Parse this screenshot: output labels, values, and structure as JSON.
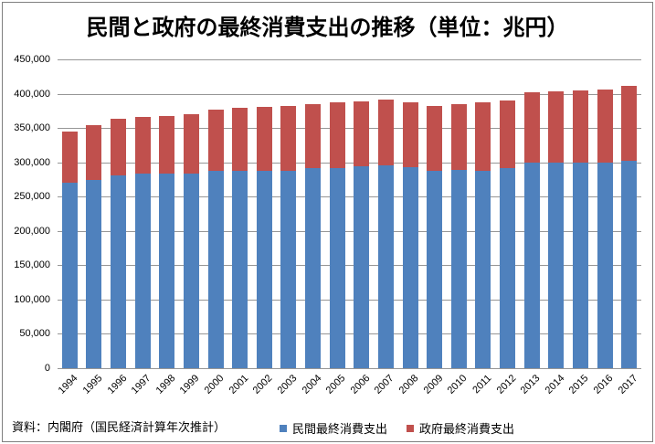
{
  "title": "民間と政府の最終消費支出の推移（単位：兆円）",
  "source_note": "資料：内閣府（国民経済計算年次推計）",
  "colors": {
    "private_series": "#4F81BD",
    "government_series": "#C0504D",
    "gridline": "#969696",
    "frame_border": "#808080",
    "background": "#FFFFFF",
    "text": "#000000"
  },
  "legend": {
    "position": "bottom",
    "items": [
      {
        "label": "民間最終消費支出",
        "color": "#4F81BD"
      },
      {
        "label": "政府最終消費支出",
        "color": "#C0504D"
      }
    ]
  },
  "chart_data": {
    "type": "bar",
    "stacked": true,
    "title": "民間と政府の最終消費支出の推移（単位：兆円）",
    "xlabel": "",
    "ylabel": "",
    "categories": [
      "1994",
      "1995",
      "1996",
      "1997",
      "1998",
      "1999",
      "2000",
      "2001",
      "2002",
      "2003",
      "2004",
      "2005",
      "2006",
      "2007",
      "2008",
      "2009",
      "2010",
      "2011",
      "2012",
      "2013",
      "2014",
      "2015",
      "2016",
      "2017"
    ],
    "series": [
      {
        "name": "民間最終消費支出",
        "color": "#4F81BD",
        "values": [
          270000,
          274000,
          281000,
          283000,
          283000,
          284000,
          287000,
          288000,
          288000,
          288000,
          291000,
          292000,
          294000,
          295000,
          293000,
          288000,
          289000,
          288000,
          291000,
          299000,
          299000,
          300000,
          299000,
          302000
        ]
      },
      {
        "name": "政府最終消費支出",
        "color": "#C0504D",
        "values": [
          75000,
          80000,
          82000,
          83000,
          84000,
          87000,
          89000,
          92000,
          93000,
          94000,
          93000,
          96000,
          95000,
          96000,
          94000,
          95000,
          96000,
          100000,
          99000,
          102000,
          104000,
          105000,
          106000,
          109000
        ]
      }
    ],
    "stacked_totals": [
      345000,
      354000,
      363000,
      366000,
      367000,
      371000,
      376000,
      380000,
      381000,
      382000,
      384000,
      388000,
      389000,
      391000,
      387000,
      383000,
      385000,
      388000,
      390000,
      401000,
      403000,
      405000,
      405000,
      411000
    ],
    "ylim": [
      0,
      450000
    ],
    "ytick_step": 50000,
    "ytick_labels": [
      "0",
      "50,000",
      "100,000",
      "150,000",
      "200,000",
      "250,000",
      "300,000",
      "350,000",
      "400,000",
      "450,000"
    ],
    "grid": true,
    "legend_position": "bottom"
  }
}
